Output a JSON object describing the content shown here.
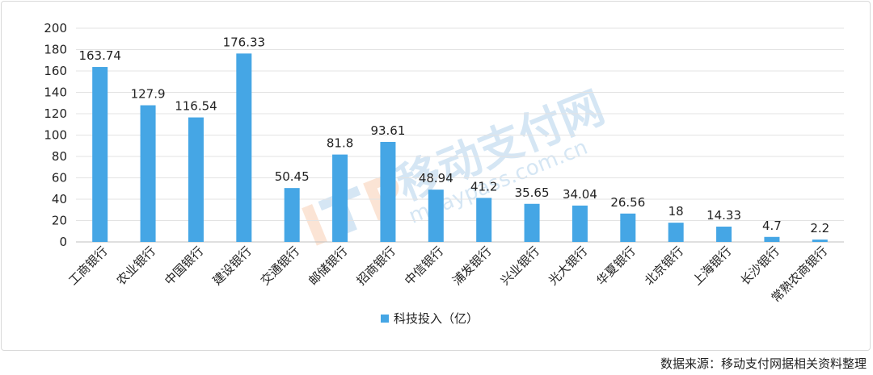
{
  "chart_data": {
    "type": "bar",
    "categories": [
      "工商银行",
      "农业银行",
      "中国银行",
      "建设银行",
      "交通银行",
      "邮储银行",
      "招商银行",
      "中信银行",
      "浦发银行",
      "兴业银行",
      "光大银行",
      "华夏银行",
      "北京银行",
      "上海银行",
      "长沙银行",
      "常熟农商银行"
    ],
    "series": [
      {
        "name": "科技投入（亿）",
        "values": [
          163.74,
          127.9,
          116.54,
          176.33,
          50.45,
          81.8,
          93.61,
          48.94,
          41.2,
          35.65,
          34.04,
          26.56,
          18,
          14.33,
          4.7,
          2.2
        ],
        "value_labels": [
          "163.74",
          "127.9",
          "116.54",
          "176.33",
          "50.45",
          "81.8",
          "93.61",
          "48.94",
          "41.2",
          "35.65",
          "34.04",
          "26.56",
          "18",
          "14.33",
          "4.7",
          "2.2"
        ],
        "color": "#45a6e5"
      }
    ],
    "ylim": [
      0,
      200
    ],
    "yticks": [
      0,
      20,
      40,
      60,
      80,
      100,
      120,
      140,
      160,
      180,
      200
    ],
    "grid": true,
    "legend": "bottom-center"
  },
  "watermark": {
    "text": "移动支付网",
    "domain": "mpaypass.com.cn"
  },
  "source_note": "数据来源：移动支付网据相关资料整理"
}
